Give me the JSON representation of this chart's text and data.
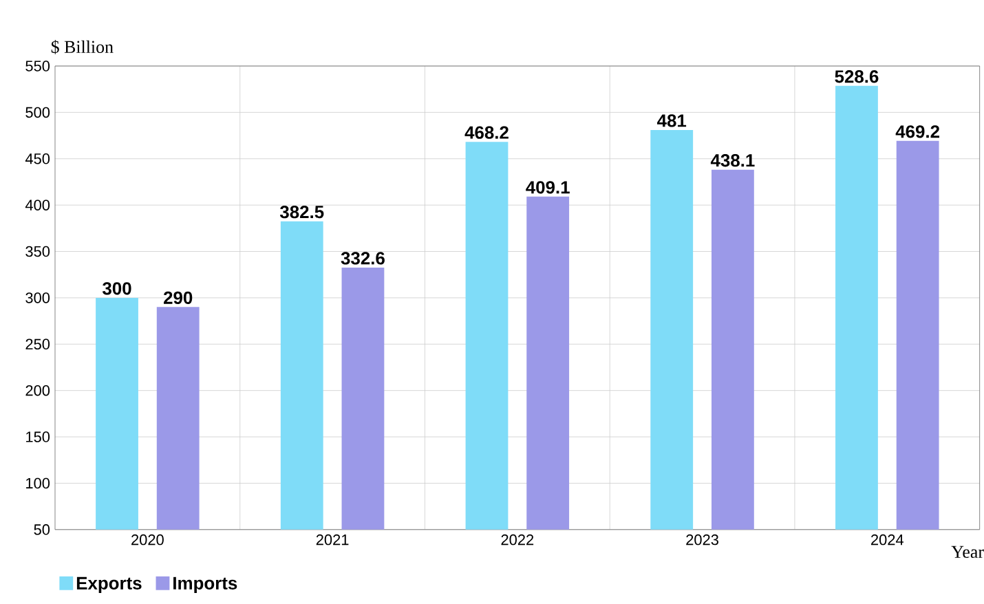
{
  "chart_data": {
    "type": "bar",
    "ylabel": "$ Billion",
    "xlabel": "Year",
    "categories": [
      "2020",
      "2021",
      "2022",
      "2023",
      "2024"
    ],
    "series": [
      {
        "name": "Exports",
        "color": "#7fdcf8",
        "values": [
          300,
          382.5,
          468.2,
          481,
          528.6
        ]
      },
      {
        "name": "Imports",
        "color": "#9b99e8",
        "values": [
          290,
          332.6,
          409.1,
          438.1,
          469.2
        ]
      }
    ],
    "ylim": [
      50,
      550
    ],
    "yticks": [
      50,
      100,
      150,
      200,
      250,
      300,
      350,
      400,
      450,
      500,
      550
    ],
    "grid": true,
    "data_labels": true,
    "legend": "bottom left"
  }
}
